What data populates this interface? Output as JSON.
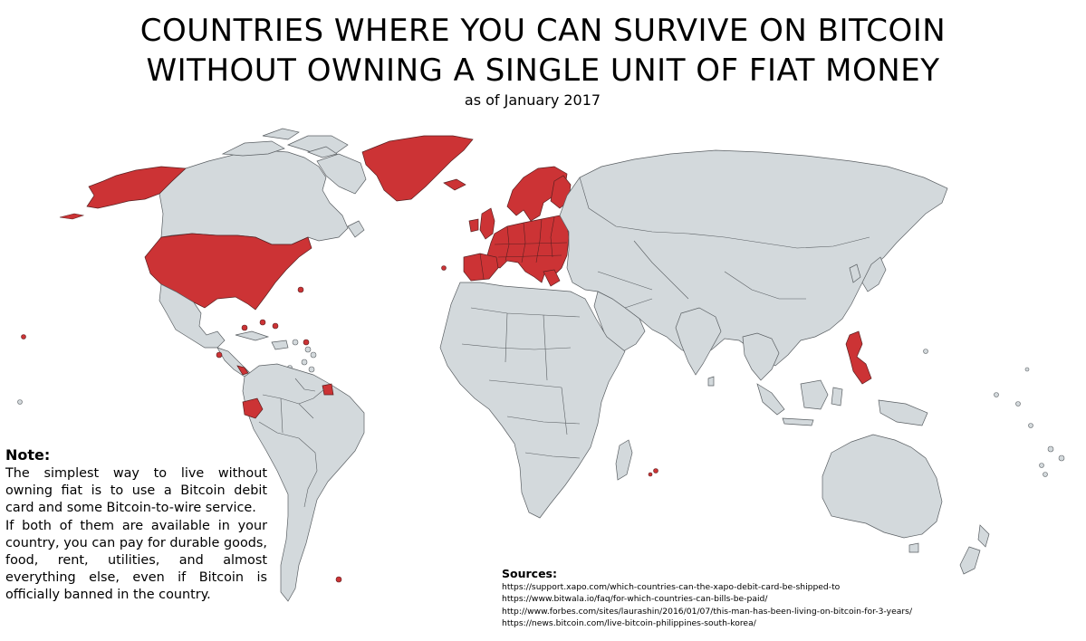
{
  "map": {
    "title_line1": "COUNTRIES WHERE YOU CAN SURVIVE ON BITCOIN",
    "title_line2": "WITHOUT OWNING A SINGLE UNIT OF FIAT MONEY",
    "subtitle": "as of January 2017",
    "colors": {
      "highlight": "#cc3335",
      "land": "#d3d9dc",
      "border": "#5a5f63",
      "background": "#ffffff"
    }
  },
  "note": {
    "heading": "Note:",
    "paragraph1": "The simplest way to live without owning fiat is to use a Bitcoin debit card and some Bitcoin-to-wire service.",
    "paragraph2": "If both of them are available in your country, you can pay for durable goods, food, rent, utilities, and almost everything else, even if Bitcoin is officially banned in the country."
  },
  "sources": {
    "heading": "Sources:",
    "links": [
      "https://support.xapo.com/which-countries-can-the-xapo-debit-card-be-shipped-to",
      "https://www.bitwala.io/faq/for-which-countries-can-bills-be-paid/",
      "http://www.forbes.com/sites/laurashin/2016/01/07/this-man-has-been-living-on-bitcoin-for-3-years/",
      "https://news.bitcoin.com/live-bitcoin-philippines-south-korea/"
    ]
  }
}
